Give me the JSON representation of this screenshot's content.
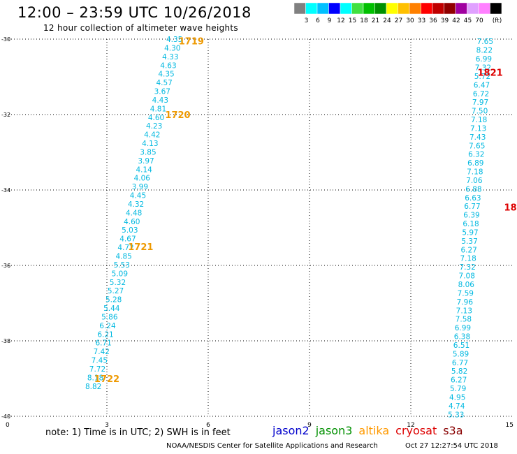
{
  "header": {
    "title": "12:00 – 23:59 UTC 10/26/2018",
    "subtitle": "12 hour collection of altimeter wave heights"
  },
  "legend": {
    "unit": "(ft)",
    "colors": [
      "#808080",
      "#00ffff",
      "#00c0ff",
      "#0000ff",
      "#00ffff",
      "#40e040",
      "#00c000",
      "#009000",
      "#ffff00",
      "#ffc000",
      "#ff8000",
      "#ff0000",
      "#c00000",
      "#900000",
      "#a000a0",
      "#e0a0ff",
      "#ff80ff",
      "#000000"
    ],
    "labels": [
      "3",
      "6",
      "9",
      "12",
      "15",
      "18",
      "21",
      "24",
      "27",
      "30",
      "33",
      "36",
      "39",
      "42",
      "45",
      "70"
    ]
  },
  "chart_data": {
    "type": "scatter",
    "xlim": [
      0,
      15
    ],
    "ylim": [
      -40,
      -30
    ],
    "x_ticks": [
      "0",
      "3",
      "6",
      "9",
      "12",
      "15"
    ],
    "y_ticks": [
      "-30",
      "-32",
      "-34",
      "-36",
      "-38",
      "-40"
    ],
    "grid": true,
    "points": [
      {
        "x": 5.0,
        "y": -30.0,
        "v": "4.35"
      },
      {
        "x": 4.94,
        "y": -30.23,
        "v": "4.30"
      },
      {
        "x": 4.88,
        "y": -30.46,
        "v": "4.33"
      },
      {
        "x": 4.82,
        "y": -30.69,
        "v": "4.63"
      },
      {
        "x": 4.76,
        "y": -30.92,
        "v": "4.35"
      },
      {
        "x": 4.7,
        "y": -31.15,
        "v": "4.57"
      },
      {
        "x": 4.64,
        "y": -31.38,
        "v": "3.67"
      },
      {
        "x": 4.58,
        "y": -31.61,
        "v": "4.43"
      },
      {
        "x": 4.52,
        "y": -31.84,
        "v": "4.81"
      },
      {
        "x": 4.46,
        "y": -32.07,
        "v": "4.60"
      },
      {
        "x": 4.4,
        "y": -32.3,
        "v": "4.23"
      },
      {
        "x": 4.34,
        "y": -32.53,
        "v": "4.42"
      },
      {
        "x": 4.28,
        "y": -32.76,
        "v": "4.13"
      },
      {
        "x": 4.22,
        "y": -32.99,
        "v": "3.85"
      },
      {
        "x": 4.16,
        "y": -33.22,
        "v": "3.97"
      },
      {
        "x": 4.1,
        "y": -33.45,
        "v": "4.14"
      },
      {
        "x": 4.04,
        "y": -33.68,
        "v": "4.06"
      },
      {
        "x": 3.98,
        "y": -33.91,
        "v": "3.99"
      },
      {
        "x": 3.92,
        "y": -34.14,
        "v": "4.45"
      },
      {
        "x": 3.86,
        "y": -34.37,
        "v": "4.32"
      },
      {
        "x": 3.8,
        "y": -34.6,
        "v": "4.48"
      },
      {
        "x": 3.74,
        "y": -34.83,
        "v": "4.60"
      },
      {
        "x": 3.68,
        "y": -35.06,
        "v": "5.03"
      },
      {
        "x": 3.62,
        "y": -35.29,
        "v": "4.67"
      },
      {
        "x": 3.56,
        "y": -35.52,
        "v": "4.72"
      },
      {
        "x": 3.5,
        "y": -35.75,
        "v": "4.85"
      },
      {
        "x": 3.44,
        "y": -35.98,
        "v": "5.53"
      },
      {
        "x": 3.38,
        "y": -36.21,
        "v": "5.09"
      },
      {
        "x": 3.32,
        "y": -36.44,
        "v": "5.32"
      },
      {
        "x": 3.26,
        "y": -36.67,
        "v": "5.27"
      },
      {
        "x": 3.2,
        "y": -36.9,
        "v": "5.28"
      },
      {
        "x": 3.14,
        "y": -37.13,
        "v": "5.44"
      },
      {
        "x": 3.08,
        "y": -37.36,
        "v": "5.86"
      },
      {
        "x": 3.02,
        "y": -37.59,
        "v": "6.24"
      },
      {
        "x": 2.96,
        "y": -37.82,
        "v": "6.21"
      },
      {
        "x": 2.9,
        "y": -38.05,
        "v": "6.71"
      },
      {
        "x": 2.84,
        "y": -38.28,
        "v": "7.42"
      },
      {
        "x": 2.78,
        "y": -38.51,
        "v": "7.45"
      },
      {
        "x": 2.72,
        "y": -38.74,
        "v": "7.72"
      },
      {
        "x": 2.66,
        "y": -38.97,
        "v": "8.18"
      },
      {
        "x": 2.6,
        "y": -39.2,
        "v": "8.82"
      },
      {
        "x": 14.2,
        "y": -30.06,
        "v": "7.65"
      },
      {
        "x": 14.18,
        "y": -30.29,
        "v": "8.22"
      },
      {
        "x": 14.16,
        "y": -30.52,
        "v": "6.99"
      },
      {
        "x": 14.14,
        "y": -30.75,
        "v": "7.32"
      },
      {
        "x": 14.12,
        "y": -30.98,
        "v": "5.72"
      },
      {
        "x": 14.1,
        "y": -31.21,
        "v": "6.47"
      },
      {
        "x": 14.08,
        "y": -31.44,
        "v": "6.72"
      },
      {
        "x": 14.06,
        "y": -31.67,
        "v": "7.97"
      },
      {
        "x": 14.04,
        "y": -31.9,
        "v": "7.50"
      },
      {
        "x": 14.02,
        "y": -32.13,
        "v": "7.18"
      },
      {
        "x": 14.0,
        "y": -32.36,
        "v": "7.13"
      },
      {
        "x": 13.98,
        "y": -32.59,
        "v": "7.43"
      },
      {
        "x": 13.96,
        "y": -32.82,
        "v": "7.65"
      },
      {
        "x": 13.94,
        "y": -33.05,
        "v": "6.32"
      },
      {
        "x": 13.92,
        "y": -33.28,
        "v": "6.89"
      },
      {
        "x": 13.9,
        "y": -33.51,
        "v": "7.18"
      },
      {
        "x": 13.88,
        "y": -33.74,
        "v": "7.06"
      },
      {
        "x": 13.86,
        "y": -33.97,
        "v": "6.88"
      },
      {
        "x": 13.84,
        "y": -34.2,
        "v": "6.63"
      },
      {
        "x": 13.82,
        "y": -34.43,
        "v": "6.77"
      },
      {
        "x": 13.8,
        "y": -34.66,
        "v": "6.39"
      },
      {
        "x": 13.78,
        "y": -34.89,
        "v": "6.18"
      },
      {
        "x": 13.76,
        "y": -35.12,
        "v": "5.97"
      },
      {
        "x": 13.74,
        "y": -35.35,
        "v": "5.37"
      },
      {
        "x": 13.72,
        "y": -35.58,
        "v": "6.27"
      },
      {
        "x": 13.7,
        "y": -35.81,
        "v": "7.18"
      },
      {
        "x": 13.68,
        "y": -36.04,
        "v": "7.32"
      },
      {
        "x": 13.66,
        "y": -36.27,
        "v": "7.08"
      },
      {
        "x": 13.64,
        "y": -36.5,
        "v": "8.06"
      },
      {
        "x": 13.62,
        "y": -36.73,
        "v": "7.59"
      },
      {
        "x": 13.6,
        "y": -36.96,
        "v": "7.96"
      },
      {
        "x": 13.58,
        "y": -37.19,
        "v": "7.13"
      },
      {
        "x": 13.56,
        "y": -37.42,
        "v": "7.58"
      },
      {
        "x": 13.54,
        "y": -37.65,
        "v": "6.99"
      },
      {
        "x": 13.52,
        "y": -37.88,
        "v": "6.38"
      },
      {
        "x": 13.5,
        "y": -38.11,
        "v": "6.51"
      },
      {
        "x": 13.48,
        "y": -38.34,
        "v": "5.89"
      },
      {
        "x": 13.46,
        "y": -38.57,
        "v": "6.77"
      },
      {
        "x": 13.44,
        "y": -38.8,
        "v": "5.82"
      },
      {
        "x": 13.42,
        "y": -39.03,
        "v": "6.27"
      },
      {
        "x": 13.4,
        "y": -39.26,
        "v": "5.79"
      },
      {
        "x": 13.38,
        "y": -39.49,
        "v": "4.95"
      },
      {
        "x": 13.36,
        "y": -39.72,
        "v": "4.74"
      },
      {
        "x": 13.34,
        "y": -39.95,
        "v": "5.33"
      }
    ],
    "time_labels": [
      {
        "x": 5.5,
        "y": -30.05,
        "v": "1719",
        "satellite": "altika"
      },
      {
        "x": 5.1,
        "y": -32.0,
        "v": "1720",
        "satellite": "altika"
      },
      {
        "x": 4.0,
        "y": -35.5,
        "v": "1721",
        "satellite": "altika"
      },
      {
        "x": 3.0,
        "y": -39.0,
        "v": "1722",
        "satellite": "altika"
      },
      {
        "x": 14.35,
        "y": -30.88,
        "v": "1821",
        "satellite": "cryosat"
      },
      {
        "x": 14.95,
        "y": -34.45,
        "v": "18",
        "satellite": "cryosat"
      }
    ]
  },
  "footer": {
    "note": "note: 1) Time is in UTC; 2) SWH is in feet",
    "sources": [
      {
        "name": "jason2",
        "color": "#0000cc"
      },
      {
        "name": "jason3",
        "color": "#009000"
      },
      {
        "name": "altika",
        "color": "#ff9900"
      },
      {
        "name": "cryosat",
        "color": "#dd0000"
      },
      {
        "name": "s3a",
        "color": "#880000"
      }
    ],
    "credit": "NOAA/NESDIS Center for Satellite Applications and Research",
    "timestamp": "Oct 27 12:27:54 UTC 2018"
  },
  "colors": {
    "point_label": "#00b8e0",
    "altika": "#ee9900",
    "cryosat": "#dd0000"
  }
}
